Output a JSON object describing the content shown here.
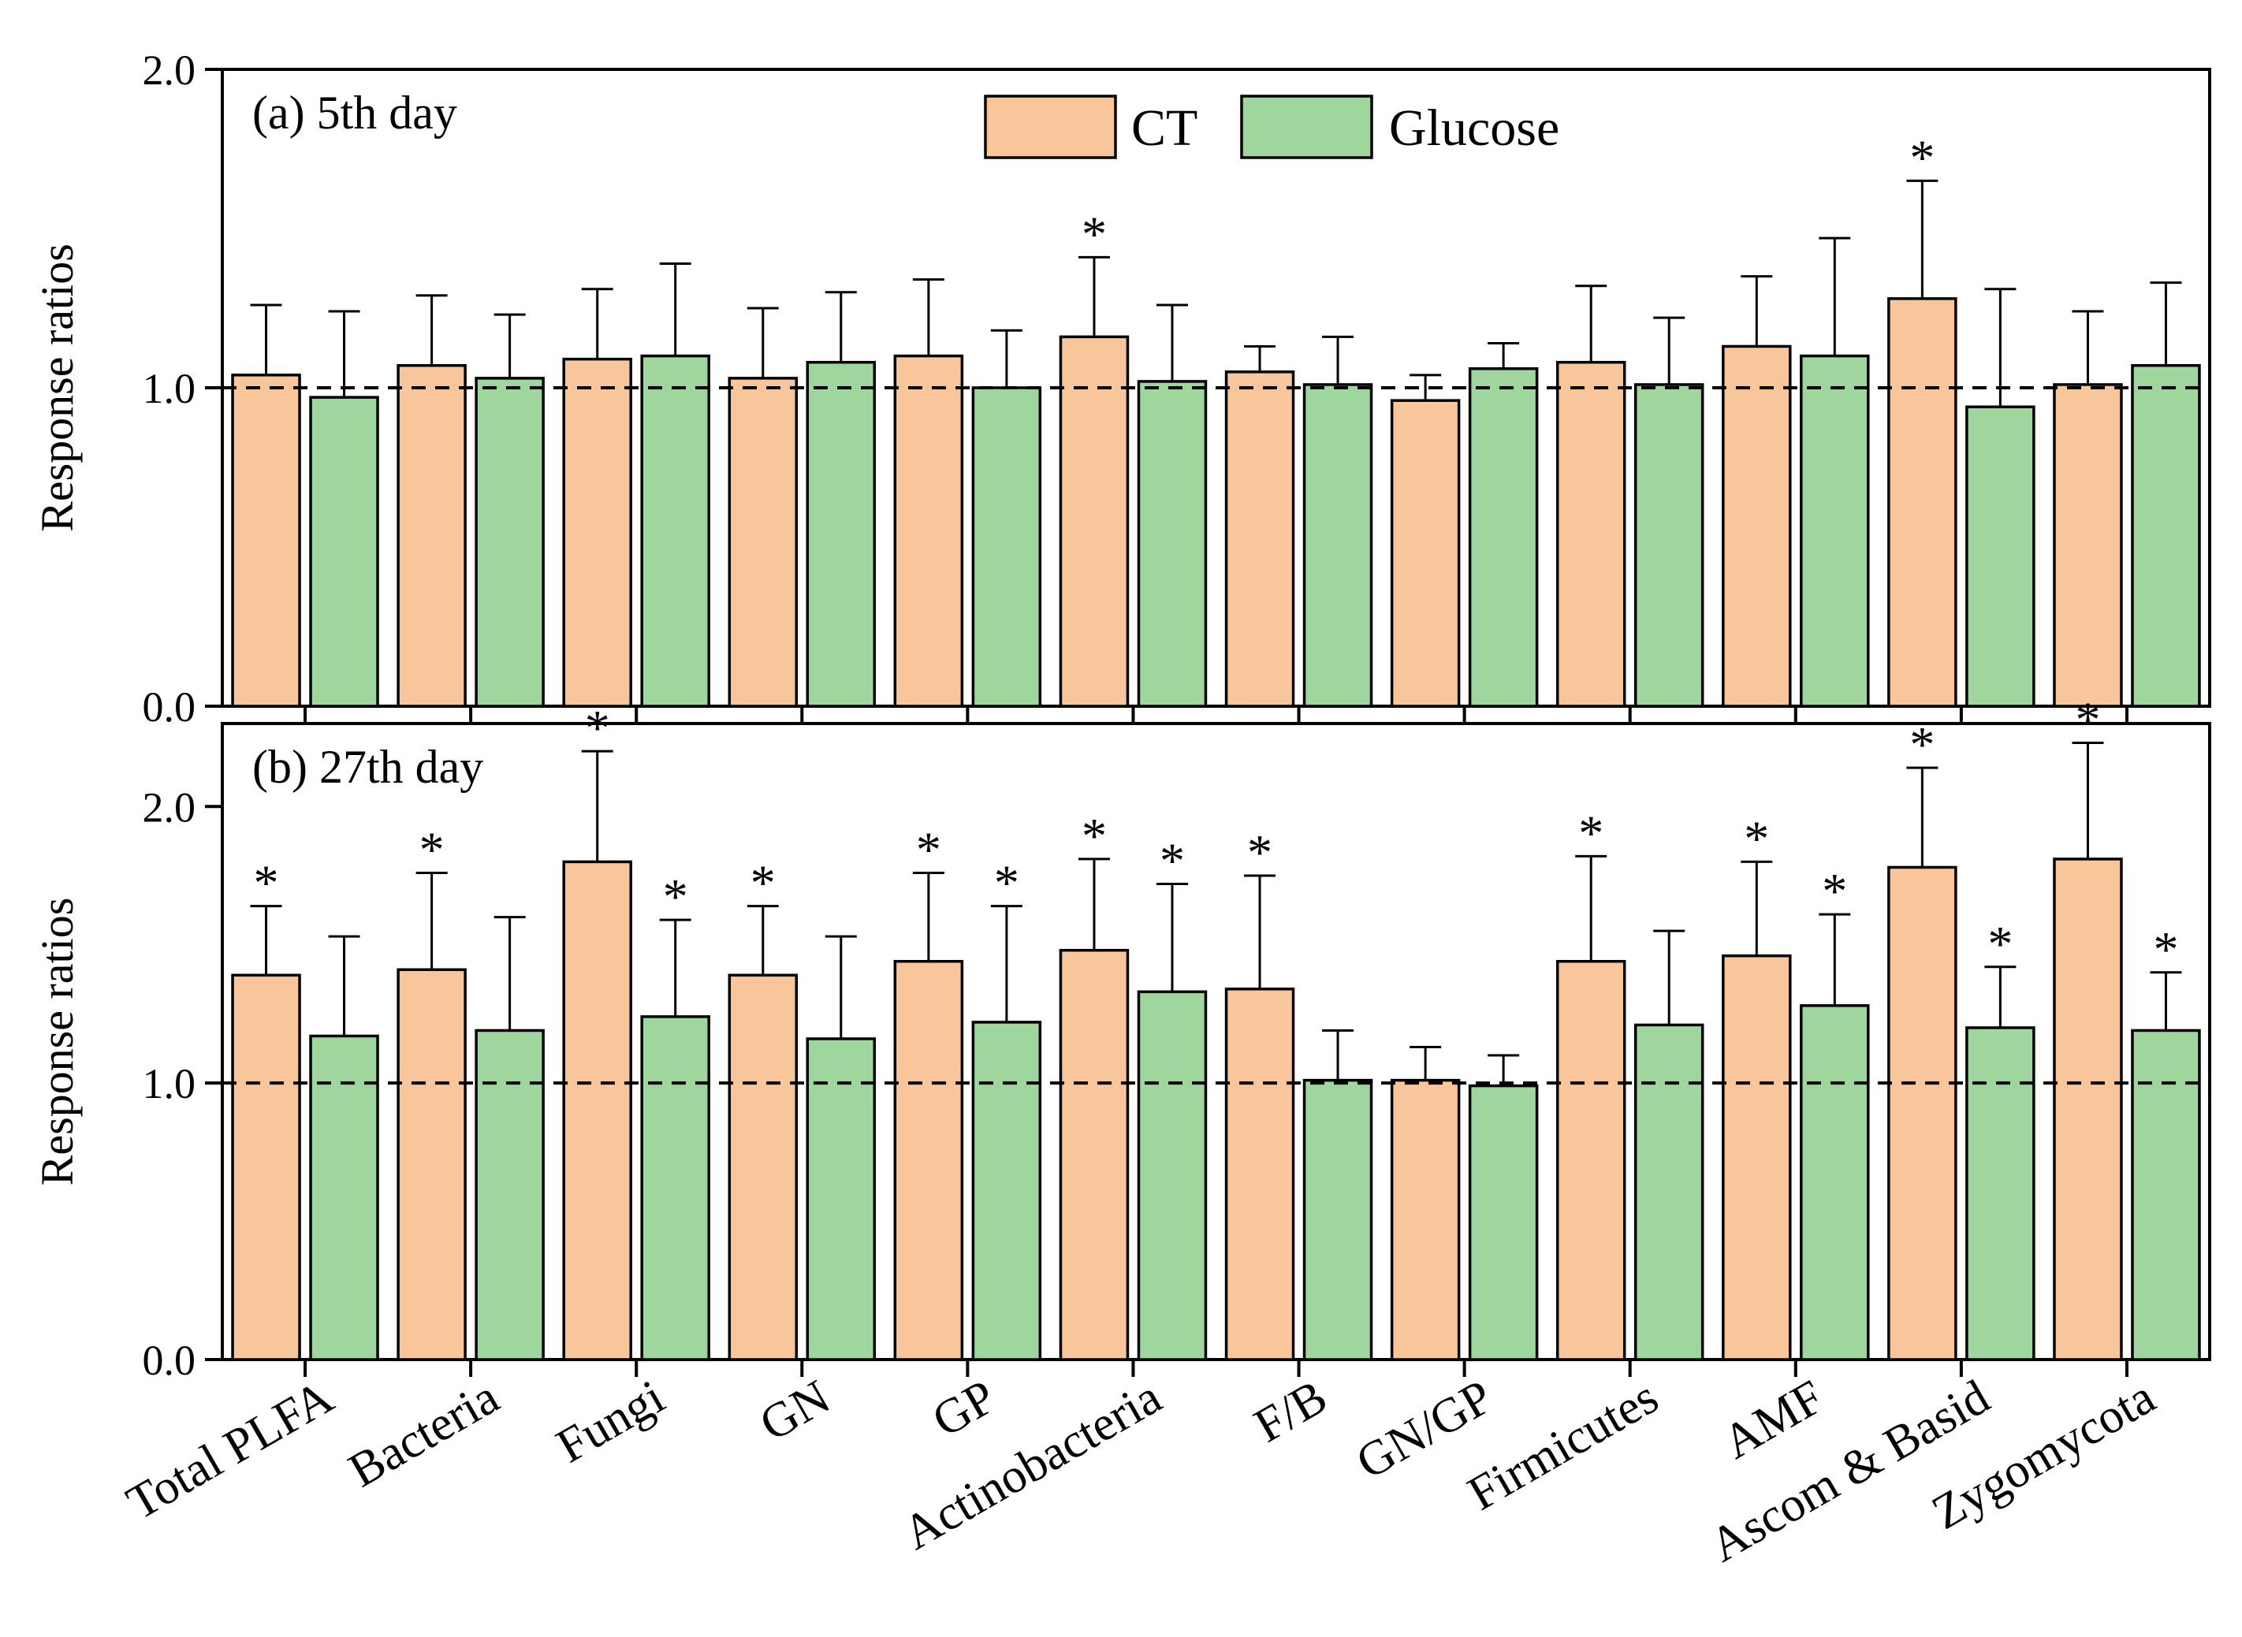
{
  "chart_data": {
    "type": "bar",
    "categories": [
      "Total PLFA",
      "Bacteria",
      "Fungi",
      "GN",
      "GP",
      "Actinobacteria",
      "F/B",
      "GN/GP",
      "Firmicutes",
      "AMF",
      "Ascom & Basid",
      "Zygomycota"
    ],
    "legend": [
      {
        "name": "CT",
        "color": "#f9c59a"
      },
      {
        "name": "Glucose",
        "color": "#9ed69e"
      }
    ],
    "reference_line": 1.0,
    "panels": [
      {
        "title": "(a) 5th day",
        "ylabel": "Response ratios",
        "ylim": [
          0,
          2.0
        ],
        "yticks": [
          "0.0",
          "1.0",
          "2.0"
        ],
        "ytick_values": [
          0,
          1,
          2
        ],
        "series": [
          {
            "name": "CT",
            "values": [
              1.04,
              1.07,
              1.09,
              1.03,
              1.1,
              1.16,
              1.05,
              0.96,
              1.08,
              1.13,
              1.28,
              1.01
            ],
            "errors": [
              0.22,
              0.22,
              0.22,
              0.22,
              0.24,
              0.25,
              0.08,
              0.08,
              0.24,
              0.22,
              0.37,
              0.23
            ],
            "significant": [
              false,
              false,
              false,
              false,
              false,
              true,
              false,
              false,
              false,
              false,
              true,
              false
            ]
          },
          {
            "name": "Glucose",
            "values": [
              0.97,
              1.03,
              1.1,
              1.08,
              1.0,
              1.02,
              1.01,
              1.06,
              1.01,
              1.1,
              0.94,
              1.07
            ],
            "errors": [
              0.27,
              0.2,
              0.29,
              0.22,
              0.18,
              0.24,
              0.15,
              0.08,
              0.21,
              0.37,
              0.37,
              0.26
            ],
            "significant": [
              false,
              false,
              false,
              false,
              false,
              false,
              false,
              false,
              false,
              false,
              false,
              false
            ]
          }
        ]
      },
      {
        "title": "(b) 27th day",
        "ylabel": "Response ratios",
        "ylim": [
          0,
          2.3
        ],
        "yticks": [
          "0.0",
          "1.0",
          "2.0"
        ],
        "ytick_values": [
          0,
          1,
          2
        ],
        "series": [
          {
            "name": "CT",
            "values": [
              1.39,
              1.41,
              1.8,
              1.39,
              1.44,
              1.48,
              1.34,
              1.01,
              1.44,
              1.46,
              1.78,
              1.81
            ],
            "errors": [
              0.25,
              0.35,
              0.4,
              0.25,
              0.32,
              0.33,
              0.41,
              0.12,
              0.38,
              0.34,
              0.36,
              0.42
            ],
            "significant": [
              true,
              true,
              true,
              true,
              true,
              true,
              true,
              false,
              true,
              true,
              true,
              true
            ]
          },
          {
            "name": "Glucose",
            "values": [
              1.17,
              1.19,
              1.24,
              1.16,
              1.22,
              1.33,
              1.01,
              0.99,
              1.21,
              1.28,
              1.2,
              1.19
            ],
            "errors": [
              0.36,
              0.41,
              0.35,
              0.37,
              0.42,
              0.39,
              0.18,
              0.11,
              0.34,
              0.33,
              0.22,
              0.21
            ],
            "significant": [
              false,
              false,
              true,
              false,
              true,
              true,
              false,
              false,
              false,
              true,
              true,
              true
            ]
          }
        ]
      }
    ]
  },
  "significance_mark": "*"
}
